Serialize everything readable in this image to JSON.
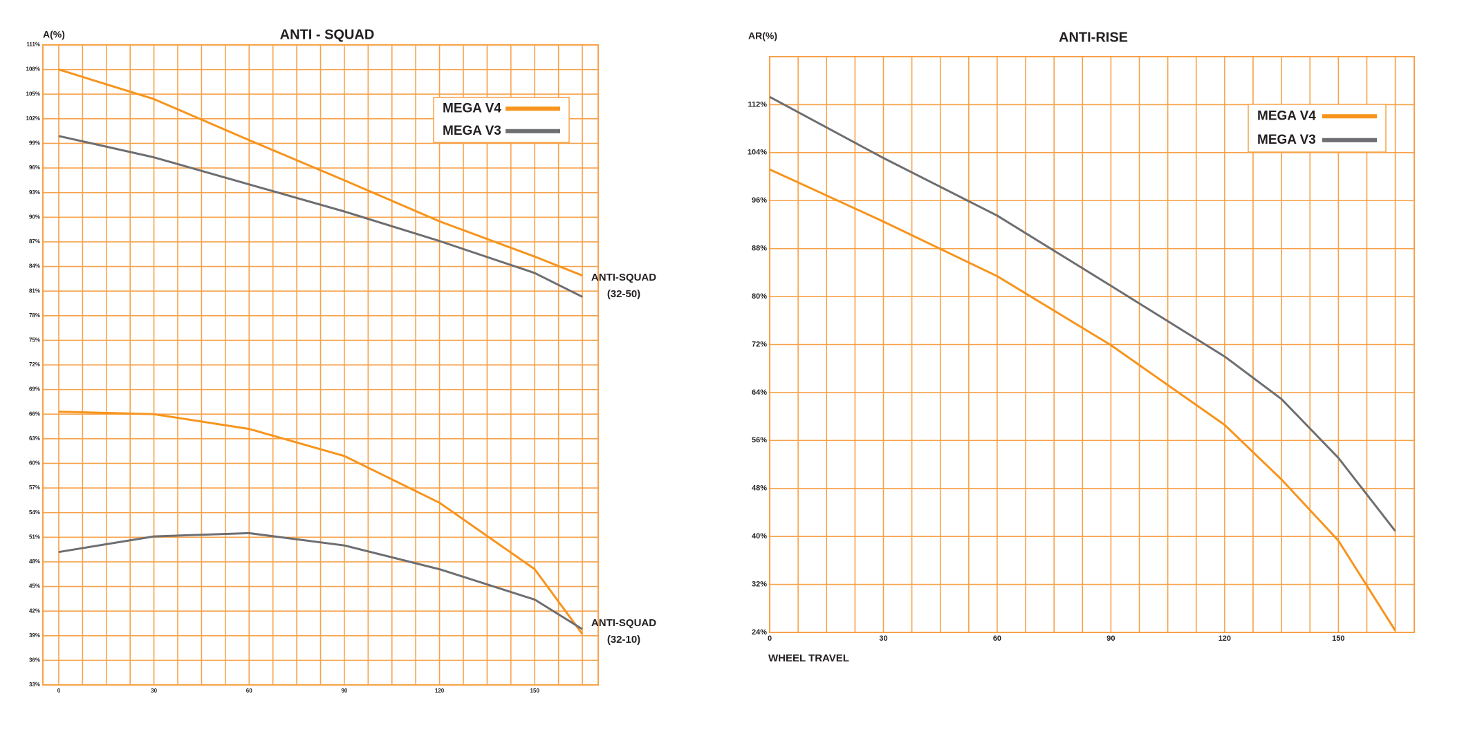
{
  "chart_data": [
    {
      "type": "line",
      "title": "ANTI - SQUAD",
      "y_label": "A(%)",
      "x": [
        0,
        30,
        60,
        90,
        120,
        150,
        165
      ],
      "series": [
        {
          "name": "MEGA V4",
          "color": "#f7941d",
          "lines": [
            [
              108,
              104.4,
              99.4,
              94.5,
              89.5,
              85.2,
              82.9
            ],
            [
              66.3,
              66,
              64.2,
              60.9,
              55.2,
              47.1,
              39.2
            ]
          ]
        },
        {
          "name": "MEGA V3",
          "color": "#6d6e71",
          "lines": [
            [
              99.9,
              97.3,
              94,
              90.7,
              87.1,
              83.2,
              80.3
            ],
            [
              49.2,
              51.1,
              51.5,
              50,
              47.1,
              43.4,
              39.8
            ]
          ]
        }
      ],
      "annotations": [
        [
          "ANTI-SQUAD",
          "(32-50)"
        ],
        [
          "ANTI-SQUAD",
          "(32-10)"
        ]
      ],
      "xlim": [
        -5,
        170
      ],
      "xticks": [
        0,
        30,
        60,
        90,
        120,
        150
      ],
      "ylim": [
        33,
        111
      ],
      "yticks": [
        {
          "value": 33,
          "label": "33%"
        },
        {
          "value": 36,
          "label": "36%"
        },
        {
          "value": 39,
          "label": "39%"
        },
        {
          "value": 42,
          "label": "42%"
        },
        {
          "value": 45,
          "label": "45%"
        },
        {
          "value": 48,
          "label": "48%"
        },
        {
          "value": 51,
          "label": "51%"
        },
        {
          "value": 54,
          "label": "54%"
        },
        {
          "value": 57,
          "label": "57%"
        },
        {
          "value": 60,
          "label": "60%"
        },
        {
          "value": 63,
          "label": "63%"
        },
        {
          "value": 66,
          "label": "66%"
        },
        {
          "value": 69,
          "label": "69%"
        },
        {
          "value": 72,
          "label": "72%"
        },
        {
          "value": 75,
          "label": "75%"
        },
        {
          "value": 78,
          "label": "78%"
        },
        {
          "value": 81,
          "label": "81%"
        },
        {
          "value": 84,
          "label": "84%"
        },
        {
          "value": 87,
          "label": "87%"
        },
        {
          "value": 90,
          "label": "90%"
        },
        {
          "value": 93,
          "label": "93%"
        },
        {
          "value": 96,
          "label": "96%"
        },
        {
          "value": 99,
          "label": "99%"
        },
        {
          "value": 102,
          "label": "102%"
        },
        {
          "value": 105,
          "label": "105%"
        },
        {
          "value": 108,
          "label": "108%"
        },
        {
          "value": 111,
          "label": "111%"
        }
      ],
      "grid": true,
      "legend": "upper right"
    },
    {
      "type": "line",
      "title": "ANTI-RISE",
      "y_label": "AR(%)",
      "x_label": "WHEEL TRAVEL",
      "x": [
        0,
        30,
        60,
        90,
        120,
        135,
        150,
        165
      ],
      "series": [
        {
          "name": "MEGA V4",
          "color": "#f7941d",
          "lines": [
            [
              101.2,
              92.5,
              83.4,
              71.9,
              58.6,
              49.5,
              39.3,
              24.3
            ]
          ]
        },
        {
          "name": "MEGA V3",
          "color": "#6d6e71",
          "lines": [
            [
              113.3,
              103.1,
              93.5,
              81.8,
              70,
              62.9,
              53.1,
              40.9
            ]
          ]
        }
      ],
      "xlim": [
        0,
        170
      ],
      "xticks": [
        0,
        30,
        60,
        90,
        120,
        150
      ],
      "ylim": [
        24,
        120
      ],
      "yticks": [
        {
          "value": 24,
          "label": "24%"
        },
        {
          "value": 32,
          "label": "32%"
        },
        {
          "value": 40,
          "label": "40%"
        },
        {
          "value": 48,
          "label": "48%"
        },
        {
          "value": 56,
          "label": "56%"
        },
        {
          "value": 64,
          "label": "64%"
        },
        {
          "value": 72,
          "label": "72%"
        },
        {
          "value": 80,
          "label": "80%"
        },
        {
          "value": 88,
          "label": "88%"
        },
        {
          "value": 96,
          "label": "96%"
        },
        {
          "value": 104,
          "label": "104%"
        },
        {
          "value": 112,
          "label": "112%"
        }
      ],
      "grid": true,
      "legend": "upper right"
    }
  ]
}
